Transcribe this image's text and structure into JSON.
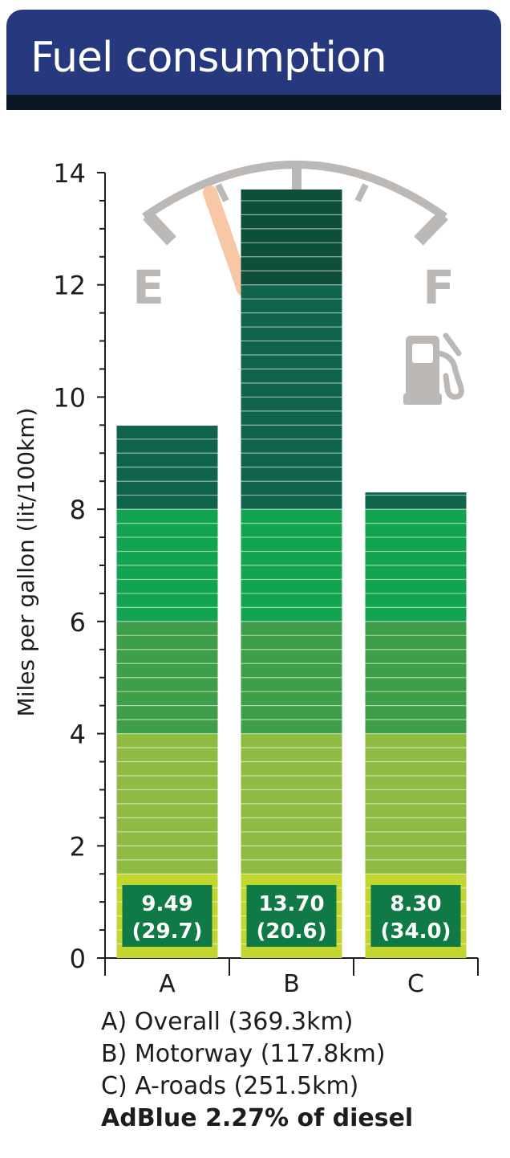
{
  "header": {
    "title": "Fuel consumption"
  },
  "gauge": {
    "empty_label": "E",
    "full_label": "F"
  },
  "colors": {
    "header_bg": "#26387e",
    "header_rule": "#0c1726",
    "gauge": "#bbb8b6",
    "needle": "#f7c7a6",
    "label_box": "#0f7a45",
    "band_colors": [
      "#c3d52f",
      "#8fbb43",
      "#3f9e4a",
      "#13a451",
      "#10634c",
      "#0e4f3a"
    ]
  },
  "chart_data": {
    "type": "bar",
    "ylabel": "Miles per gallon (lit/100km)",
    "xlabel": "",
    "ylim": [
      0,
      14
    ],
    "yticks": [
      "0",
      "2",
      "4",
      "6",
      "8",
      "10",
      "12",
      "14"
    ],
    "categories": [
      "A",
      "B",
      "C"
    ],
    "values": [
      9.49,
      13.7,
      8.3
    ],
    "data_labels": [
      [
        "9.49",
        "(29.7)"
      ],
      [
        "13.70",
        "(20.6)"
      ],
      [
        "8.30",
        "(34.0)"
      ]
    ],
    "legend_entries": [
      "A) Overall (369.3km)",
      "B) Motorway (117.8km)",
      "C) A-roads (251.5km)"
    ],
    "annotation": "AdBlue 2.27% of diesel"
  }
}
